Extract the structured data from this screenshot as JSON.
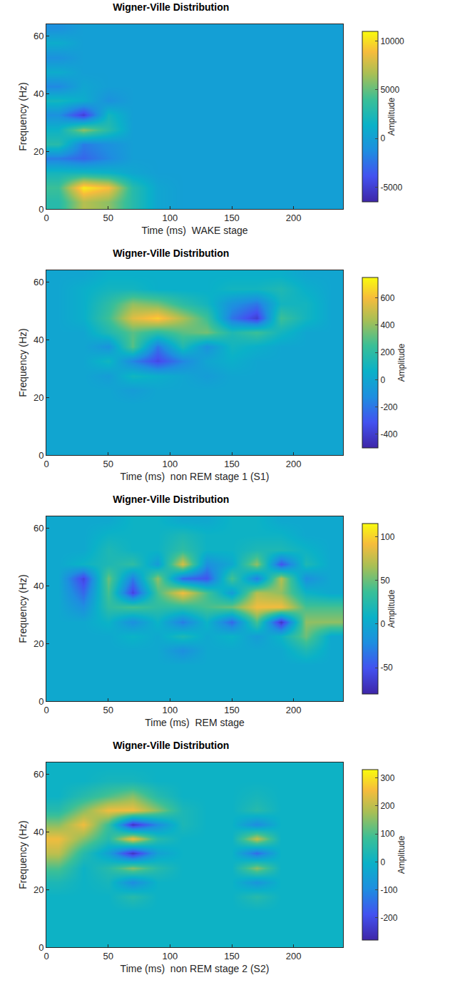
{
  "chart_data": [
    {
      "type": "heatmap",
      "title": "Wigner-Ville Distribution",
      "x_label": "Time (ms)  WAKE stage",
      "y_label": "Frequency (Hz)",
      "x": [
        10,
        30,
        50,
        70,
        90,
        110,
        130,
        150,
        170,
        190,
        210,
        230
      ],
      "y": [
        2.5,
        7.5,
        12.5,
        17.5,
        22.5,
        27.5,
        32.5,
        37.5,
        42.5,
        47.5,
        52.5,
        57.5,
        62.5
      ],
      "z": [
        [
          3000,
          7000,
          6000,
          3000,
          500,
          0,
          0,
          0,
          0,
          0,
          0,
          0
        ],
        [
          4000,
          10500,
          9000,
          3000,
          500,
          0,
          0,
          0,
          0,
          0,
          0,
          0
        ],
        [
          2000,
          2000,
          1500,
          500,
          0,
          0,
          0,
          0,
          0,
          0,
          0,
          0
        ],
        [
          -2000,
          -3000,
          -1500,
          0,
          0,
          0,
          0,
          0,
          0,
          0,
          0,
          0
        ],
        [
          3000,
          -2000,
          -1000,
          0,
          0,
          0,
          0,
          0,
          0,
          0,
          0,
          0
        ],
        [
          1500,
          6000,
          3000,
          0,
          0,
          0,
          0,
          0,
          0,
          0,
          0,
          0
        ],
        [
          -1000,
          -5000,
          2000,
          0,
          0,
          0,
          0,
          0,
          0,
          0,
          0,
          0
        ],
        [
          2000,
          1000,
          -1000,
          0,
          0,
          0,
          0,
          0,
          0,
          0,
          0,
          0
        ],
        [
          -1500,
          500,
          0,
          0,
          0,
          0,
          0,
          0,
          0,
          0,
          0,
          0
        ],
        [
          1000,
          0,
          0,
          0,
          0,
          0,
          0,
          0,
          0,
          0,
          0,
          0
        ],
        [
          -1000,
          0,
          0,
          0,
          0,
          0,
          0,
          0,
          0,
          0,
          0,
          0
        ],
        [
          1000,
          0,
          0,
          0,
          0,
          0,
          0,
          0,
          0,
          0,
          0,
          0
        ],
        [
          -1000,
          0,
          0,
          0,
          0,
          0,
          0,
          0,
          0,
          0,
          0,
          0
        ]
      ],
      "xlim": [
        0,
        240
      ],
      "ylim": [
        0,
        64
      ],
      "xticks": [
        0,
        50,
        100,
        150,
        200
      ],
      "yticks": [
        0,
        20,
        40,
        60
      ],
      "colorbar": {
        "title": "Amplitude",
        "range": [
          -6500,
          11000
        ],
        "ticks": [
          -5000,
          0,
          5000,
          10000
        ]
      }
    },
    {
      "type": "heatmap",
      "title": "Wigner-Ville Distribution",
      "x_label": "Time (ms)  non REM stage 1 (S1)",
      "y_label": "Frequency (Hz)",
      "x": [
        10,
        30,
        50,
        70,
        90,
        110,
        130,
        150,
        170,
        190,
        210,
        230
      ],
      "y": [
        2.5,
        7.5,
        12.5,
        17.5,
        22.5,
        27.5,
        32.5,
        37.5,
        42.5,
        47.5,
        52.5,
        57.5,
        62.5
      ],
      "z": [
        [
          0,
          0,
          0,
          0,
          0,
          0,
          0,
          0,
          0,
          0,
          0,
          0
        ],
        [
          0,
          0,
          0,
          0,
          0,
          0,
          0,
          0,
          0,
          0,
          0,
          0
        ],
        [
          0,
          0,
          0,
          0,
          0,
          0,
          0,
          0,
          0,
          0,
          0,
          0
        ],
        [
          0,
          0,
          0,
          0,
          0,
          0,
          0,
          0,
          0,
          0,
          0,
          0
        ],
        [
          0,
          0,
          0,
          -50,
          0,
          0,
          0,
          0,
          0,
          0,
          0,
          0
        ],
        [
          0,
          0,
          -50,
          100,
          50,
          0,
          -50,
          0,
          0,
          0,
          0,
          0
        ],
        [
          0,
          0,
          100,
          -150,
          -350,
          -150,
          0,
          50,
          0,
          0,
          0,
          0
        ],
        [
          0,
          0,
          -100,
          300,
          -200,
          150,
          -100,
          100,
          50,
          0,
          0,
          0
        ],
        [
          0,
          0,
          150,
          300,
          200,
          300,
          350,
          150,
          250,
          100,
          0,
          0
        ],
        [
          0,
          50,
          250,
          550,
          650,
          450,
          250,
          -200,
          -400,
          250,
          100,
          0
        ],
        [
          0,
          50,
          200,
          400,
          350,
          200,
          100,
          -100,
          -200,
          100,
          100,
          0
        ],
        [
          0,
          50,
          100,
          100,
          50,
          50,
          50,
          100,
          100,
          150,
          50,
          0
        ],
        [
          0,
          0,
          50,
          50,
          50,
          50,
          50,
          50,
          50,
          50,
          0,
          0
        ]
      ],
      "xlim": [
        0,
        240
      ],
      "ylim": [
        0,
        64
      ],
      "xticks": [
        0,
        50,
        100,
        150,
        200
      ],
      "yticks": [
        0,
        20,
        40,
        60
      ],
      "colorbar": {
        "title": "Amplitude",
        "range": [
          -500,
          750
        ],
        "ticks": [
          -400,
          -200,
          0,
          200,
          400,
          600
        ]
      }
    },
    {
      "type": "heatmap",
      "title": "Wigner-Ville Distribution",
      "x_label": "Time (ms)  REM stage",
      "y_label": "Frequency (Hz)",
      "x": [
        10,
        30,
        50,
        70,
        90,
        110,
        130,
        150,
        170,
        190,
        210,
        230
      ],
      "y": [
        2.5,
        7.5,
        12.5,
        17.5,
        22.5,
        27.5,
        32.5,
        37.5,
        42.5,
        47.5,
        52.5,
        57.5,
        62.5
      ],
      "z": [
        [
          0,
          0,
          0,
          0,
          0,
          0,
          0,
          0,
          0,
          0,
          0,
          0
        ],
        [
          0,
          0,
          0,
          0,
          0,
          0,
          0,
          0,
          0,
          0,
          0,
          0
        ],
        [
          0,
          0,
          0,
          0,
          0,
          0,
          0,
          0,
          0,
          0,
          0,
          0
        ],
        [
          0,
          0,
          0,
          0,
          0,
          -20,
          0,
          0,
          0,
          0,
          20,
          0
        ],
        [
          0,
          0,
          0,
          10,
          0,
          20,
          0,
          10,
          -10,
          10,
          50,
          0
        ],
        [
          0,
          0,
          10,
          -20,
          10,
          -30,
          10,
          -40,
          40,
          -70,
          60,
          60
        ],
        [
          0,
          -20,
          30,
          40,
          30,
          30,
          40,
          50,
          90,
          90,
          40,
          40
        ],
        [
          0,
          -40,
          40,
          -60,
          40,
          90,
          40,
          -10,
          70,
          60,
          10,
          0
        ],
        [
          0,
          -60,
          50,
          -30,
          60,
          -40,
          -50,
          40,
          -30,
          70,
          -20,
          0
        ],
        [
          0,
          10,
          20,
          30,
          -10,
          80,
          -20,
          0,
          60,
          -50,
          20,
          0
        ],
        [
          0,
          0,
          20,
          10,
          10,
          30,
          10,
          10,
          20,
          20,
          10,
          0
        ],
        [
          0,
          0,
          10,
          10,
          10,
          20,
          10,
          10,
          10,
          10,
          0,
          0
        ],
        [
          0,
          0,
          0,
          10,
          10,
          0,
          0,
          10,
          10,
          0,
          0,
          0
        ]
      ],
      "xlim": [
        0,
        240
      ],
      "ylim": [
        0,
        64
      ],
      "xticks": [
        0,
        50,
        100,
        150,
        200
      ],
      "yticks": [
        0,
        20,
        40,
        60
      ],
      "colorbar": {
        "title": "Amplitude",
        "range": [
          -80,
          115
        ],
        "ticks": [
          -50,
          0,
          50,
          100
        ]
      }
    },
    {
      "type": "heatmap",
      "title": "Wigner-Ville Distribution",
      "x_label": "Time (ms)  non REM stage 2 (S2)",
      "y_label": "Frequency (Hz)",
      "x": [
        10,
        30,
        50,
        70,
        90,
        110,
        130,
        150,
        170,
        190,
        210,
        230
      ],
      "y": [
        2.5,
        7.5,
        12.5,
        17.5,
        22.5,
        27.5,
        32.5,
        37.5,
        42.5,
        47.5,
        52.5,
        57.5,
        62.5
      ],
      "z": [
        [
          0,
          0,
          0,
          0,
          0,
          0,
          0,
          0,
          0,
          0,
          0,
          0
        ],
        [
          0,
          0,
          0,
          0,
          0,
          0,
          0,
          0,
          0,
          0,
          0,
          0
        ],
        [
          0,
          0,
          0,
          0,
          0,
          0,
          0,
          0,
          0,
          0,
          0,
          0
        ],
        [
          0,
          0,
          0,
          50,
          0,
          0,
          0,
          0,
          50,
          0,
          0,
          0
        ],
        [
          30,
          0,
          20,
          -100,
          0,
          0,
          0,
          0,
          -80,
          0,
          0,
          0
        ],
        [
          100,
          0,
          50,
          150,
          50,
          0,
          0,
          0,
          150,
          0,
          0,
          0
        ],
        [
          200,
          50,
          -50,
          -250,
          -50,
          0,
          0,
          0,
          -150,
          0,
          0,
          0
        ],
        [
          250,
          150,
          50,
          250,
          50,
          0,
          0,
          0,
          200,
          0,
          0,
          0
        ],
        [
          150,
          250,
          80,
          -250,
          -100,
          30,
          0,
          0,
          -100,
          0,
          0,
          0
        ],
        [
          50,
          150,
          250,
          250,
          150,
          30,
          0,
          0,
          50,
          0,
          0,
          0
        ],
        [
          0,
          50,
          100,
          150,
          50,
          0,
          0,
          0,
          20,
          0,
          0,
          0
        ],
        [
          0,
          0,
          20,
          20,
          0,
          0,
          0,
          0,
          0,
          0,
          0,
          0
        ],
        [
          0,
          0,
          0,
          0,
          0,
          0,
          0,
          0,
          0,
          0,
          0,
          0
        ]
      ],
      "xlim": [
        0,
        240
      ],
      "ylim": [
        0,
        64
      ],
      "xticks": [
        0,
        50,
        100,
        150,
        200
      ],
      "yticks": [
        0,
        20,
        40,
        60
      ],
      "colorbar": {
        "title": "Amplitude",
        "range": [
          -280,
          330
        ],
        "ticks": [
          -200,
          -100,
          0,
          100,
          200,
          300
        ]
      }
    }
  ]
}
